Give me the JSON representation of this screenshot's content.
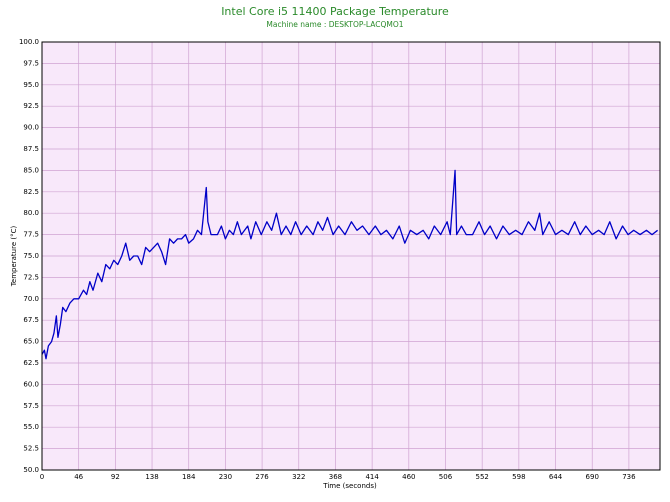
{
  "chart_data": {
    "type": "line",
    "title": "Intel Core i5 11400 Package Temperature",
    "subtitle": "Machine name : DESKTOP-LACQMO1",
    "x_label": "Time (seconds)",
    "y_label": "Temperature (°C)",
    "x": [
      0,
      3,
      5,
      8,
      12,
      15,
      18,
      20,
      23,
      26,
      30,
      35,
      40,
      46,
      52,
      56,
      60,
      64,
      70,
      75,
      80,
      85,
      90,
      95,
      100,
      105,
      110,
      115,
      120,
      125,
      130,
      135,
      140,
      145,
      150,
      155,
      160,
      165,
      170,
      175,
      180,
      184,
      190,
      195,
      200,
      206,
      208,
      212,
      220,
      225,
      230,
      235,
      240,
      245,
      250,
      258,
      262,
      268,
      275,
      282,
      288,
      294,
      300,
      306,
      312,
      318,
      325,
      332,
      340,
      346,
      352,
      358,
      365,
      372,
      380,
      388,
      395,
      402,
      410,
      418,
      425,
      432,
      440,
      448,
      455,
      462,
      470,
      478,
      485,
      492,
      500,
      508,
      512,
      518,
      520,
      526,
      532,
      540,
      548,
      555,
      562,
      570,
      578,
      586,
      594,
      602,
      610,
      618,
      624,
      628,
      636,
      644,
      652,
      660,
      668,
      675,
      682,
      690,
      698,
      705,
      712,
      720,
      728,
      735,
      742,
      750,
      758,
      765,
      772
    ],
    "series": [
      {
        "name": "Package Temperature",
        "color": "#0000c8",
        "values": [
          63.5,
          64,
          63,
          64.5,
          65,
          66,
          68,
          65.5,
          67,
          69,
          68.5,
          69.5,
          70,
          70,
          71,
          70.5,
          72,
          71,
          73,
          72,
          74,
          73.5,
          74.5,
          74,
          75,
          76.5,
          74.5,
          75,
          75,
          74,
          76,
          75.5,
          76,
          76.5,
          75.5,
          74,
          77,
          76.5,
          77,
          77,
          77.5,
          76.5,
          77,
          78,
          77.5,
          83,
          79,
          77.5,
          77.5,
          78.5,
          77,
          78,
          77.5,
          79,
          77.5,
          78.5,
          77,
          79,
          77.5,
          79,
          78,
          80,
          77.5,
          78.5,
          77.5,
          79,
          77.5,
          78.5,
          77.5,
          79,
          78,
          79.5,
          77.5,
          78.5,
          77.5,
          79,
          78,
          78.5,
          77.5,
          78.5,
          77.5,
          78,
          77,
          78.5,
          76.5,
          78,
          77.5,
          78,
          77,
          78.5,
          77.5,
          79,
          77.5,
          85,
          77.5,
          78.5,
          77.5,
          77.5,
          79,
          77.5,
          78.5,
          77,
          78.5,
          77.5,
          78,
          77.5,
          79,
          78,
          80,
          77.5,
          79,
          77.5,
          78,
          77.5,
          79,
          77.5,
          78.5,
          77.5,
          78,
          77.5,
          79,
          77,
          78.5,
          77.5,
          78,
          77.5,
          78,
          77.5,
          78
        ]
      }
    ],
    "xlim": [
      0,
      775
    ],
    "ylim": [
      50,
      100
    ],
    "xticks": [
      0,
      46,
      92,
      138,
      184,
      230,
      276,
      322,
      368,
      414,
      460,
      506,
      552,
      598,
      644,
      690,
      736
    ],
    "yticks": [
      {
        "value": 50,
        "label": "50.0"
      },
      {
        "value": 52.5,
        "label": "52.5"
      },
      {
        "value": 55,
        "label": "55.0"
      },
      {
        "value": 57.5,
        "label": "57.5"
      },
      {
        "value": 60,
        "label": "60.0"
      },
      {
        "value": 62.5,
        "label": "62.5"
      },
      {
        "value": 65,
        "label": "65.0"
      },
      {
        "value": 67.5,
        "label": "67.5"
      },
      {
        "value": 70,
        "label": "70.0"
      },
      {
        "value": 72.5,
        "label": "72.5"
      },
      {
        "value": 75,
        "label": "75.0"
      },
      {
        "value": 77.5,
        "label": "77.5"
      },
      {
        "value": 80,
        "label": "80.0"
      },
      {
        "value": 82.5,
        "label": "82.5"
      },
      {
        "value": 85,
        "label": "85.0"
      },
      {
        "value": 87.5,
        "label": "87.5"
      },
      {
        "value": 90,
        "label": "90.0"
      },
      {
        "value": 92.5,
        "label": "92.5"
      },
      {
        "value": 95,
        "label": "95.0"
      },
      {
        "value": 97.5,
        "label": "97.5"
      },
      {
        "value": 100,
        "label": "100.0"
      }
    ],
    "grid": true
  }
}
